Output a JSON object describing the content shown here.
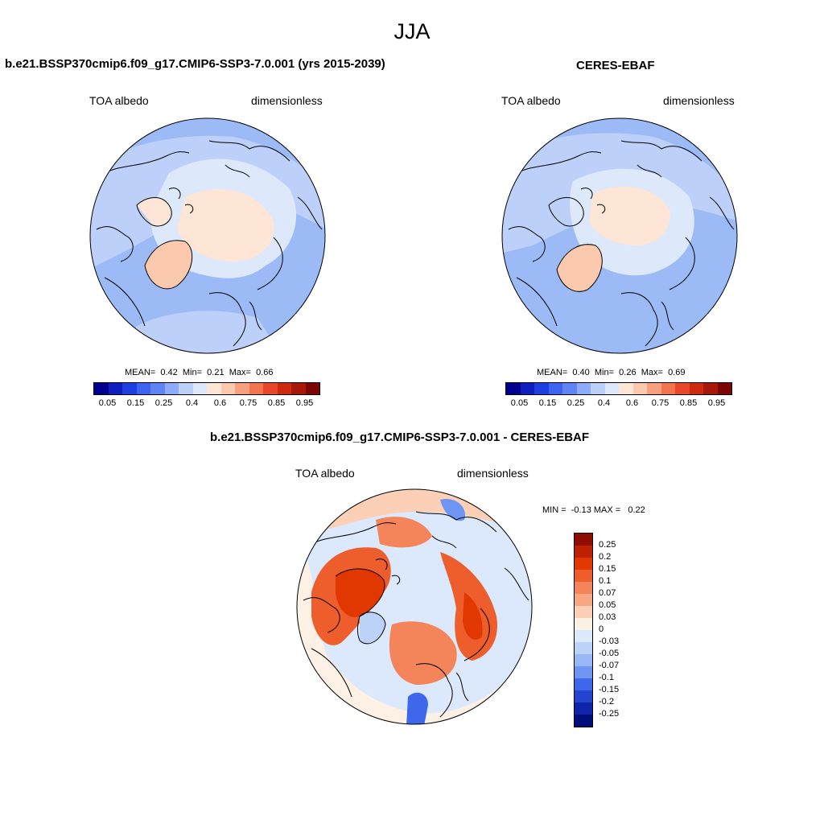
{
  "main_title": "JJA",
  "colors": {
    "seq": [
      "#00008f",
      "#0f1fbf",
      "#1e3fe0",
      "#3d63f0",
      "#5f85f5",
      "#8dabf7",
      "#bcd0fa",
      "#dde8fb",
      "#fde6d6",
      "#fbc9ae",
      "#f8a07d",
      "#f3744e",
      "#e8472a",
      "#cc2b10",
      "#a8180a",
      "#7e0505"
    ],
    "diff": [
      "#8f0d00",
      "#bd2100",
      "#e03800",
      "#ee5e2d",
      "#f4855a",
      "#f7a883",
      "#fbd0b6",
      "#fdf0e4",
      "#dce8fb",
      "#bdd2f9",
      "#97b7f6",
      "#6f95f2",
      "#3f67eb",
      "#2244cf",
      "#0f24a8",
      "#000e7a"
    ],
    "land": "#000000"
  },
  "panels": {
    "model": {
      "title": "b.e21.BSSP370cmip6.f09_g17.CMIP6-SSP3-7.0.001 (yrs 2015-2039)",
      "variable": "TOA albedo",
      "units": "dimensionless",
      "mean_label": "MEAN=",
      "mean": "0.42",
      "min_label": "Min=",
      "min": "0.21",
      "max_label": "Max=",
      "max": "0.66",
      "levels": [
        "0.05",
        "0.15",
        "0.25",
        "0.4",
        "0.6",
        "0.75",
        "0.85",
        "0.95"
      ]
    },
    "obs": {
      "title": "CERES-EBAF",
      "variable": "TOA albedo",
      "units": "dimensionless",
      "mean_label": "MEAN=",
      "mean": "0.40",
      "min_label": "Min=",
      "min": "0.26",
      "max_label": "Max=",
      "max": "0.69",
      "levels": [
        "0.05",
        "0.15",
        "0.25",
        "0.4",
        "0.6",
        "0.75",
        "0.85",
        "0.95"
      ]
    },
    "diff": {
      "title": "b.e21.BSSP370cmip6.f09_g17.CMIP6-SSP3-7.0.001 - CERES-EBAF",
      "variable": "TOA albedo",
      "units": "dimensionless",
      "minmax_text": "MIN =  -0.13 MAX =   0.22",
      "levels": [
        "0.25",
        "0.2",
        "0.15",
        "0.1",
        "0.07",
        "0.05",
        "0.03",
        "0",
        "-0.03",
        "-0.05",
        "-0.07",
        "-0.1",
        "-0.15",
        "-0.2",
        "-0.25"
      ]
    }
  }
}
